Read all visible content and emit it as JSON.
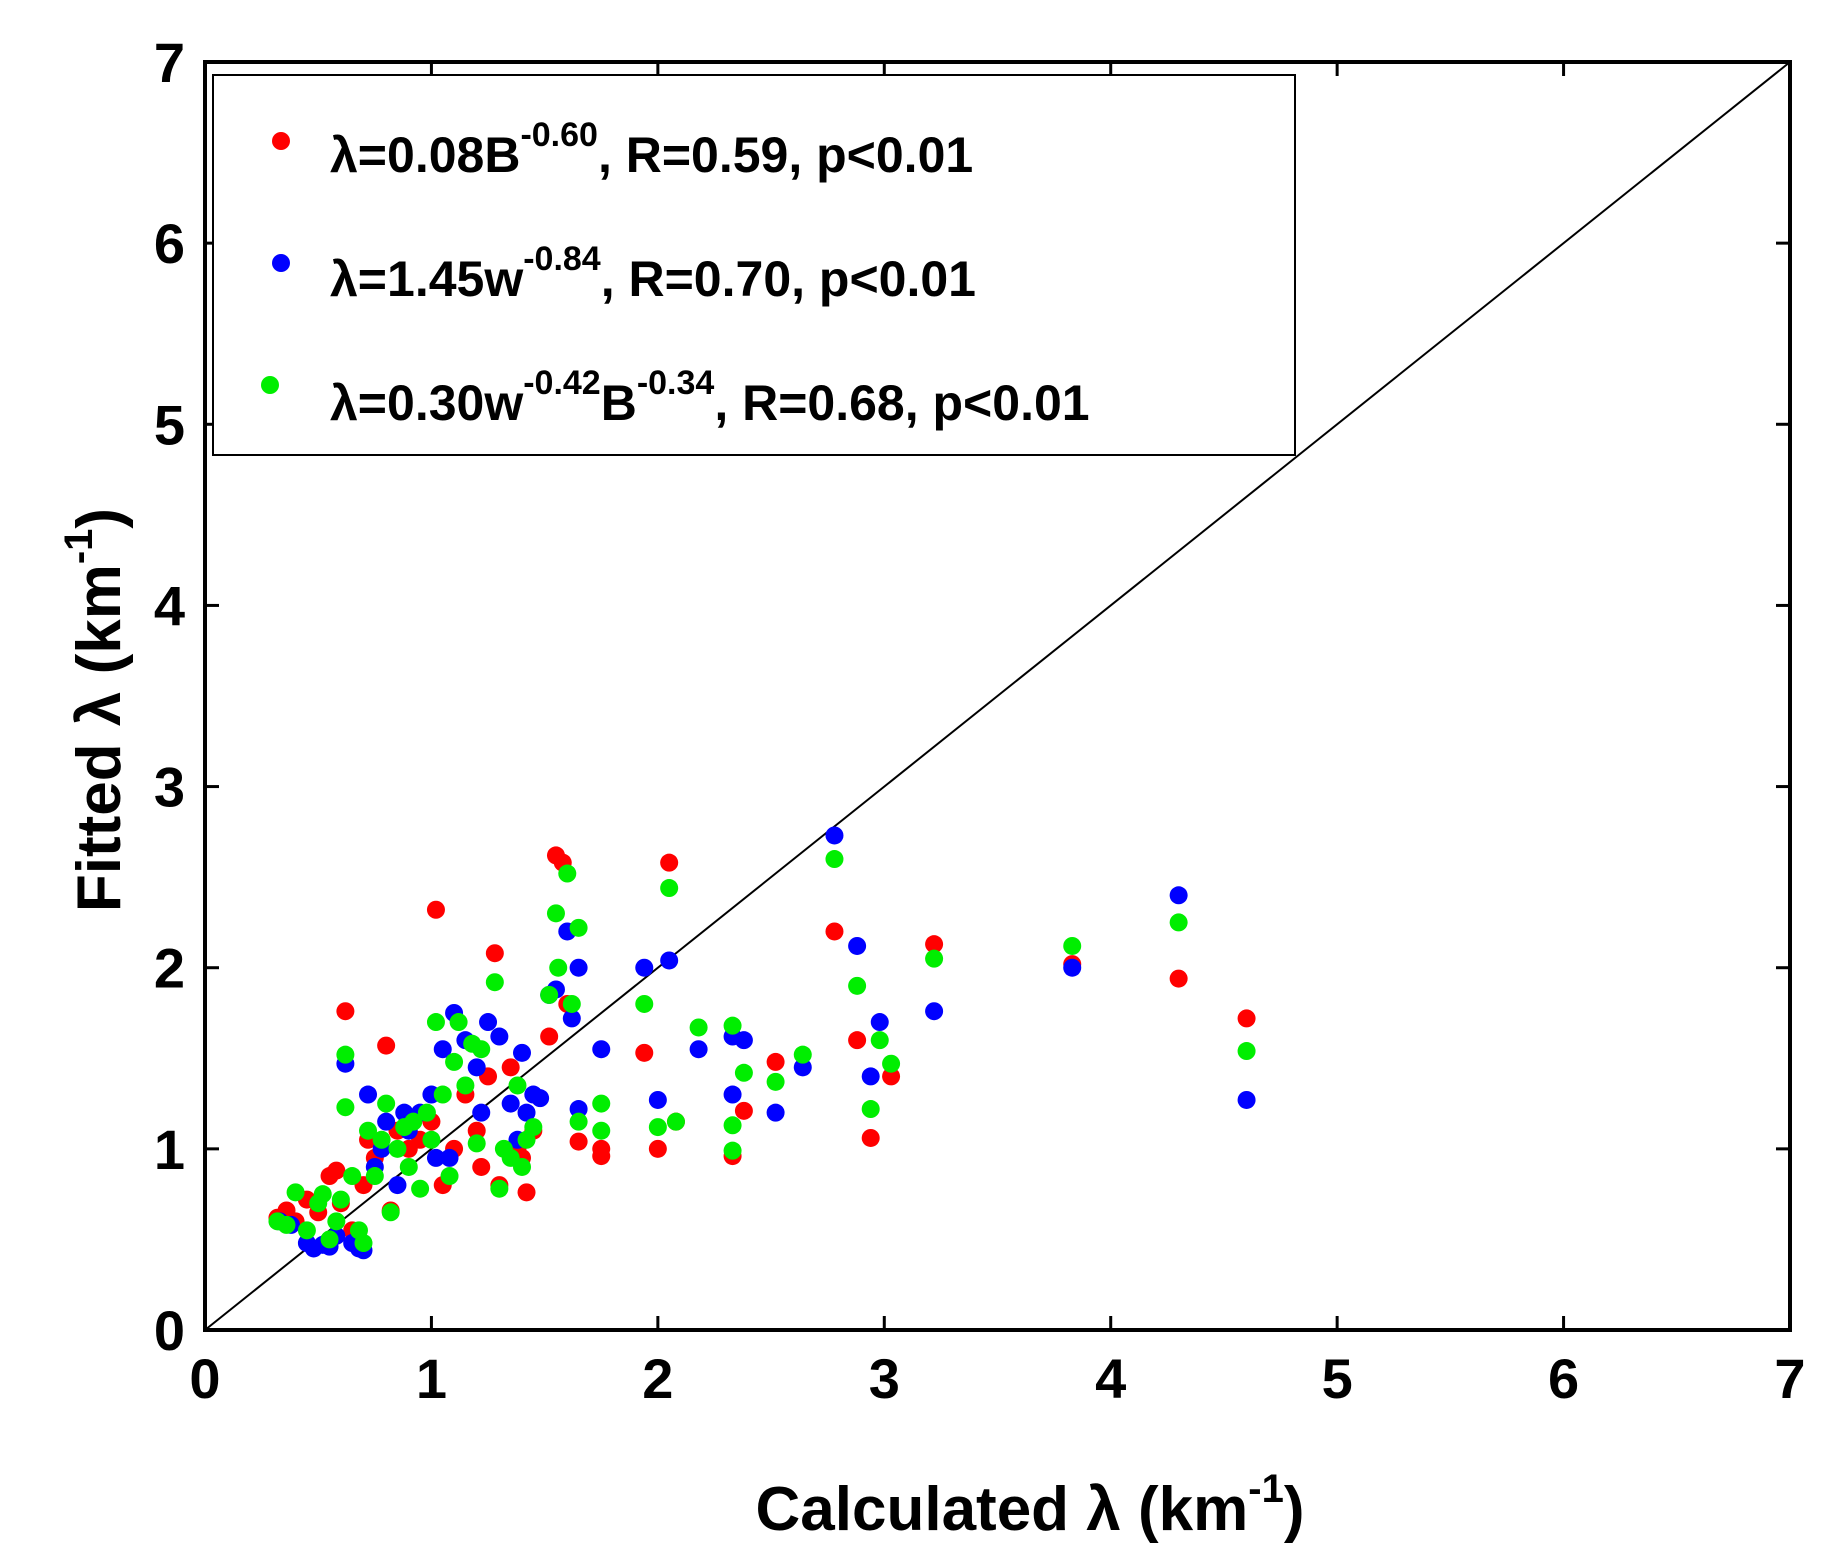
{
  "chart_data": {
    "type": "scatter",
    "title": "",
    "xlabel": {
      "base": "Calculated λ (km",
      "sup": "-1",
      "tail": ")"
    },
    "ylabel": {
      "base": "Fitted λ (km",
      "sup": "-1",
      "tail": ")"
    },
    "xlim": [
      0,
      7
    ],
    "ylim": [
      0,
      7
    ],
    "xticks": [
      "0",
      "1",
      "2",
      "3",
      "4",
      "5",
      "6",
      "7"
    ],
    "yticks": [
      "0",
      "1",
      "2",
      "3",
      "4",
      "5",
      "6",
      "7"
    ],
    "grid": false,
    "legend_position": "top-left",
    "reference_line": {
      "name": "1:1 line",
      "x": [
        0,
        7
      ],
      "y": [
        0,
        7
      ],
      "color": "#000000"
    },
    "series": [
      {
        "name": "red",
        "color": "#ff0000",
        "legend_parts": [
          {
            "t": "λ=0.08B"
          },
          {
            "t": "-0.60",
            "sup": true
          },
          {
            "t": ", R=0.59, p<0.01"
          }
        ],
        "points": [
          [
            0.32,
            0.62
          ],
          [
            0.36,
            0.66
          ],
          [
            0.4,
            0.6
          ],
          [
            0.45,
            0.72
          ],
          [
            0.5,
            0.65
          ],
          [
            0.55,
            0.85
          ],
          [
            0.58,
            0.88
          ],
          [
            0.6,
            0.7
          ],
          [
            0.62,
            1.76
          ],
          [
            0.65,
            0.55
          ],
          [
            0.7,
            0.8
          ],
          [
            0.72,
            1.05
          ],
          [
            0.75,
            0.95
          ],
          [
            0.8,
            1.57
          ],
          [
            0.82,
            0.66
          ],
          [
            0.85,
            1.1
          ],
          [
            0.9,
            1.0
          ],
          [
            0.95,
            1.05
          ],
          [
            1.0,
            1.15
          ],
          [
            1.02,
            2.32
          ],
          [
            1.05,
            0.8
          ],
          [
            1.1,
            1.0
          ],
          [
            1.15,
            1.3
          ],
          [
            1.2,
            1.1
          ],
          [
            1.22,
            0.9
          ],
          [
            1.25,
            1.4
          ],
          [
            1.28,
            2.08
          ],
          [
            1.3,
            0.8
          ],
          [
            1.35,
            1.45
          ],
          [
            1.38,
            1.0
          ],
          [
            1.4,
            0.95
          ],
          [
            1.42,
            0.76
          ],
          [
            1.45,
            1.1
          ],
          [
            1.52,
            1.62
          ],
          [
            1.55,
            2.62
          ],
          [
            1.58,
            2.58
          ],
          [
            1.6,
            1.8
          ],
          [
            1.65,
            1.04
          ],
          [
            1.75,
            0.96
          ],
          [
            1.75,
            1.0
          ],
          [
            1.94,
            1.53
          ],
          [
            2.0,
            1.0
          ],
          [
            2.05,
            2.58
          ],
          [
            2.08,
            1.15
          ],
          [
            2.33,
            0.96
          ],
          [
            2.38,
            1.21
          ],
          [
            2.52,
            1.48
          ],
          [
            2.78,
            2.2
          ],
          [
            2.88,
            1.6
          ],
          [
            2.94,
            1.06
          ],
          [
            3.03,
            1.4
          ],
          [
            3.22,
            2.13
          ],
          [
            3.83,
            2.02
          ],
          [
            4.3,
            1.94
          ],
          [
            4.6,
            1.72
          ]
        ]
      },
      {
        "name": "blue",
        "color": "#0000ff",
        "legend_parts": [
          {
            "t": "λ=1.45w"
          },
          {
            "t": "-0.84",
            "sup": true
          },
          {
            "t": ", R=0.70, p<0.01"
          }
        ],
        "points": [
          [
            0.33,
            0.6
          ],
          [
            0.38,
            0.58
          ],
          [
            0.45,
            0.48
          ],
          [
            0.48,
            0.45
          ],
          [
            0.52,
            0.47
          ],
          [
            0.55,
            0.46
          ],
          [
            0.58,
            0.52
          ],
          [
            0.62,
            1.47
          ],
          [
            0.65,
            0.48
          ],
          [
            0.68,
            0.45
          ],
          [
            0.7,
            0.44
          ],
          [
            0.72,
            1.3
          ],
          [
            0.75,
            0.9
          ],
          [
            0.78,
            1.0
          ],
          [
            0.8,
            1.15
          ],
          [
            0.85,
            0.8
          ],
          [
            0.88,
            1.2
          ],
          [
            0.9,
            1.1
          ],
          [
            0.95,
            1.2
          ],
          [
            1.0,
            1.3
          ],
          [
            1.02,
            0.95
          ],
          [
            1.05,
            1.55
          ],
          [
            1.08,
            0.95
          ],
          [
            1.1,
            1.75
          ],
          [
            1.15,
            1.6
          ],
          [
            1.2,
            1.45
          ],
          [
            1.22,
            1.2
          ],
          [
            1.25,
            1.7
          ],
          [
            1.3,
            1.62
          ],
          [
            1.35,
            1.25
          ],
          [
            1.38,
            1.05
          ],
          [
            1.4,
            1.53
          ],
          [
            1.42,
            1.2
          ],
          [
            1.45,
            1.3
          ],
          [
            1.48,
            1.28
          ],
          [
            1.52,
            1.85
          ],
          [
            1.55,
            1.88
          ],
          [
            1.6,
            2.2
          ],
          [
            1.62,
            1.72
          ],
          [
            1.65,
            1.22
          ],
          [
            1.65,
            2.0
          ],
          [
            1.75,
            1.55
          ],
          [
            1.94,
            2.0
          ],
          [
            2.0,
            1.27
          ],
          [
            2.05,
            2.04
          ],
          [
            2.18,
            1.55
          ],
          [
            2.33,
            1.3
          ],
          [
            2.33,
            1.62
          ],
          [
            2.38,
            1.6
          ],
          [
            2.52,
            1.2
          ],
          [
            2.64,
            1.45
          ],
          [
            2.78,
            2.73
          ],
          [
            2.88,
            2.12
          ],
          [
            2.94,
            1.4
          ],
          [
            2.98,
            1.7
          ],
          [
            3.22,
            1.76
          ],
          [
            3.83,
            2.0
          ],
          [
            4.3,
            2.4
          ],
          [
            4.6,
            1.27
          ]
        ]
      },
      {
        "name": "green",
        "color": "#00ee00",
        "legend_parts": [
          {
            "t": "λ=0.30w"
          },
          {
            "t": "-0.42",
            "sup": true
          },
          {
            "t": "B"
          },
          {
            "t": "-0.34",
            "sup": true
          },
          {
            "t": ", R=0.68, p<0.01"
          }
        ],
        "points": [
          [
            0.32,
            0.6
          ],
          [
            0.36,
            0.58
          ],
          [
            0.4,
            0.76
          ],
          [
            0.45,
            0.55
          ],
          [
            0.5,
            0.7
          ],
          [
            0.52,
            0.75
          ],
          [
            0.55,
            0.5
          ],
          [
            0.58,
            0.6
          ],
          [
            0.6,
            0.72
          ],
          [
            0.62,
            1.52
          ],
          [
            0.62,
            1.23
          ],
          [
            0.65,
            0.85
          ],
          [
            0.68,
            0.55
          ],
          [
            0.7,
            0.48
          ],
          [
            0.72,
            1.1
          ],
          [
            0.75,
            0.85
          ],
          [
            0.78,
            1.05
          ],
          [
            0.8,
            1.25
          ],
          [
            0.82,
            0.65
          ],
          [
            0.85,
            1.0
          ],
          [
            0.88,
            1.12
          ],
          [
            0.9,
            0.9
          ],
          [
            0.92,
            1.15
          ],
          [
            0.95,
            0.78
          ],
          [
            0.98,
            1.2
          ],
          [
            1.0,
            1.05
          ],
          [
            1.02,
            1.7
          ],
          [
            1.05,
            1.3
          ],
          [
            1.08,
            0.85
          ],
          [
            1.1,
            1.48
          ],
          [
            1.12,
            1.7
          ],
          [
            1.15,
            1.35
          ],
          [
            1.18,
            1.58
          ],
          [
            1.2,
            1.03
          ],
          [
            1.22,
            1.55
          ],
          [
            1.28,
            1.92
          ],
          [
            1.3,
            0.78
          ],
          [
            1.32,
            1.0
          ],
          [
            1.35,
            0.95
          ],
          [
            1.38,
            1.35
          ],
          [
            1.4,
            0.9
          ],
          [
            1.42,
            1.05
          ],
          [
            1.45,
            1.12
          ],
          [
            1.52,
            1.85
          ],
          [
            1.55,
            2.3
          ],
          [
            1.56,
            2.0
          ],
          [
            1.6,
            2.52
          ],
          [
            1.62,
            1.8
          ],
          [
            1.65,
            2.22
          ],
          [
            1.65,
            1.15
          ],
          [
            1.75,
            1.1
          ],
          [
            1.75,
            1.25
          ],
          [
            1.94,
            1.8
          ],
          [
            2.0,
            1.12
          ],
          [
            2.05,
            2.44
          ],
          [
            2.08,
            1.15
          ],
          [
            2.18,
            1.67
          ],
          [
            2.33,
            1.68
          ],
          [
            2.33,
            1.13
          ],
          [
            2.33,
            0.99
          ],
          [
            2.38,
            1.42
          ],
          [
            2.52,
            1.37
          ],
          [
            2.64,
            1.52
          ],
          [
            2.78,
            2.6
          ],
          [
            2.88,
            1.9
          ],
          [
            2.94,
            1.22
          ],
          [
            2.98,
            1.6
          ],
          [
            3.03,
            1.47
          ],
          [
            3.22,
            2.05
          ],
          [
            3.83,
            2.12
          ],
          [
            4.3,
            2.25
          ],
          [
            4.6,
            1.54
          ]
        ]
      }
    ]
  }
}
